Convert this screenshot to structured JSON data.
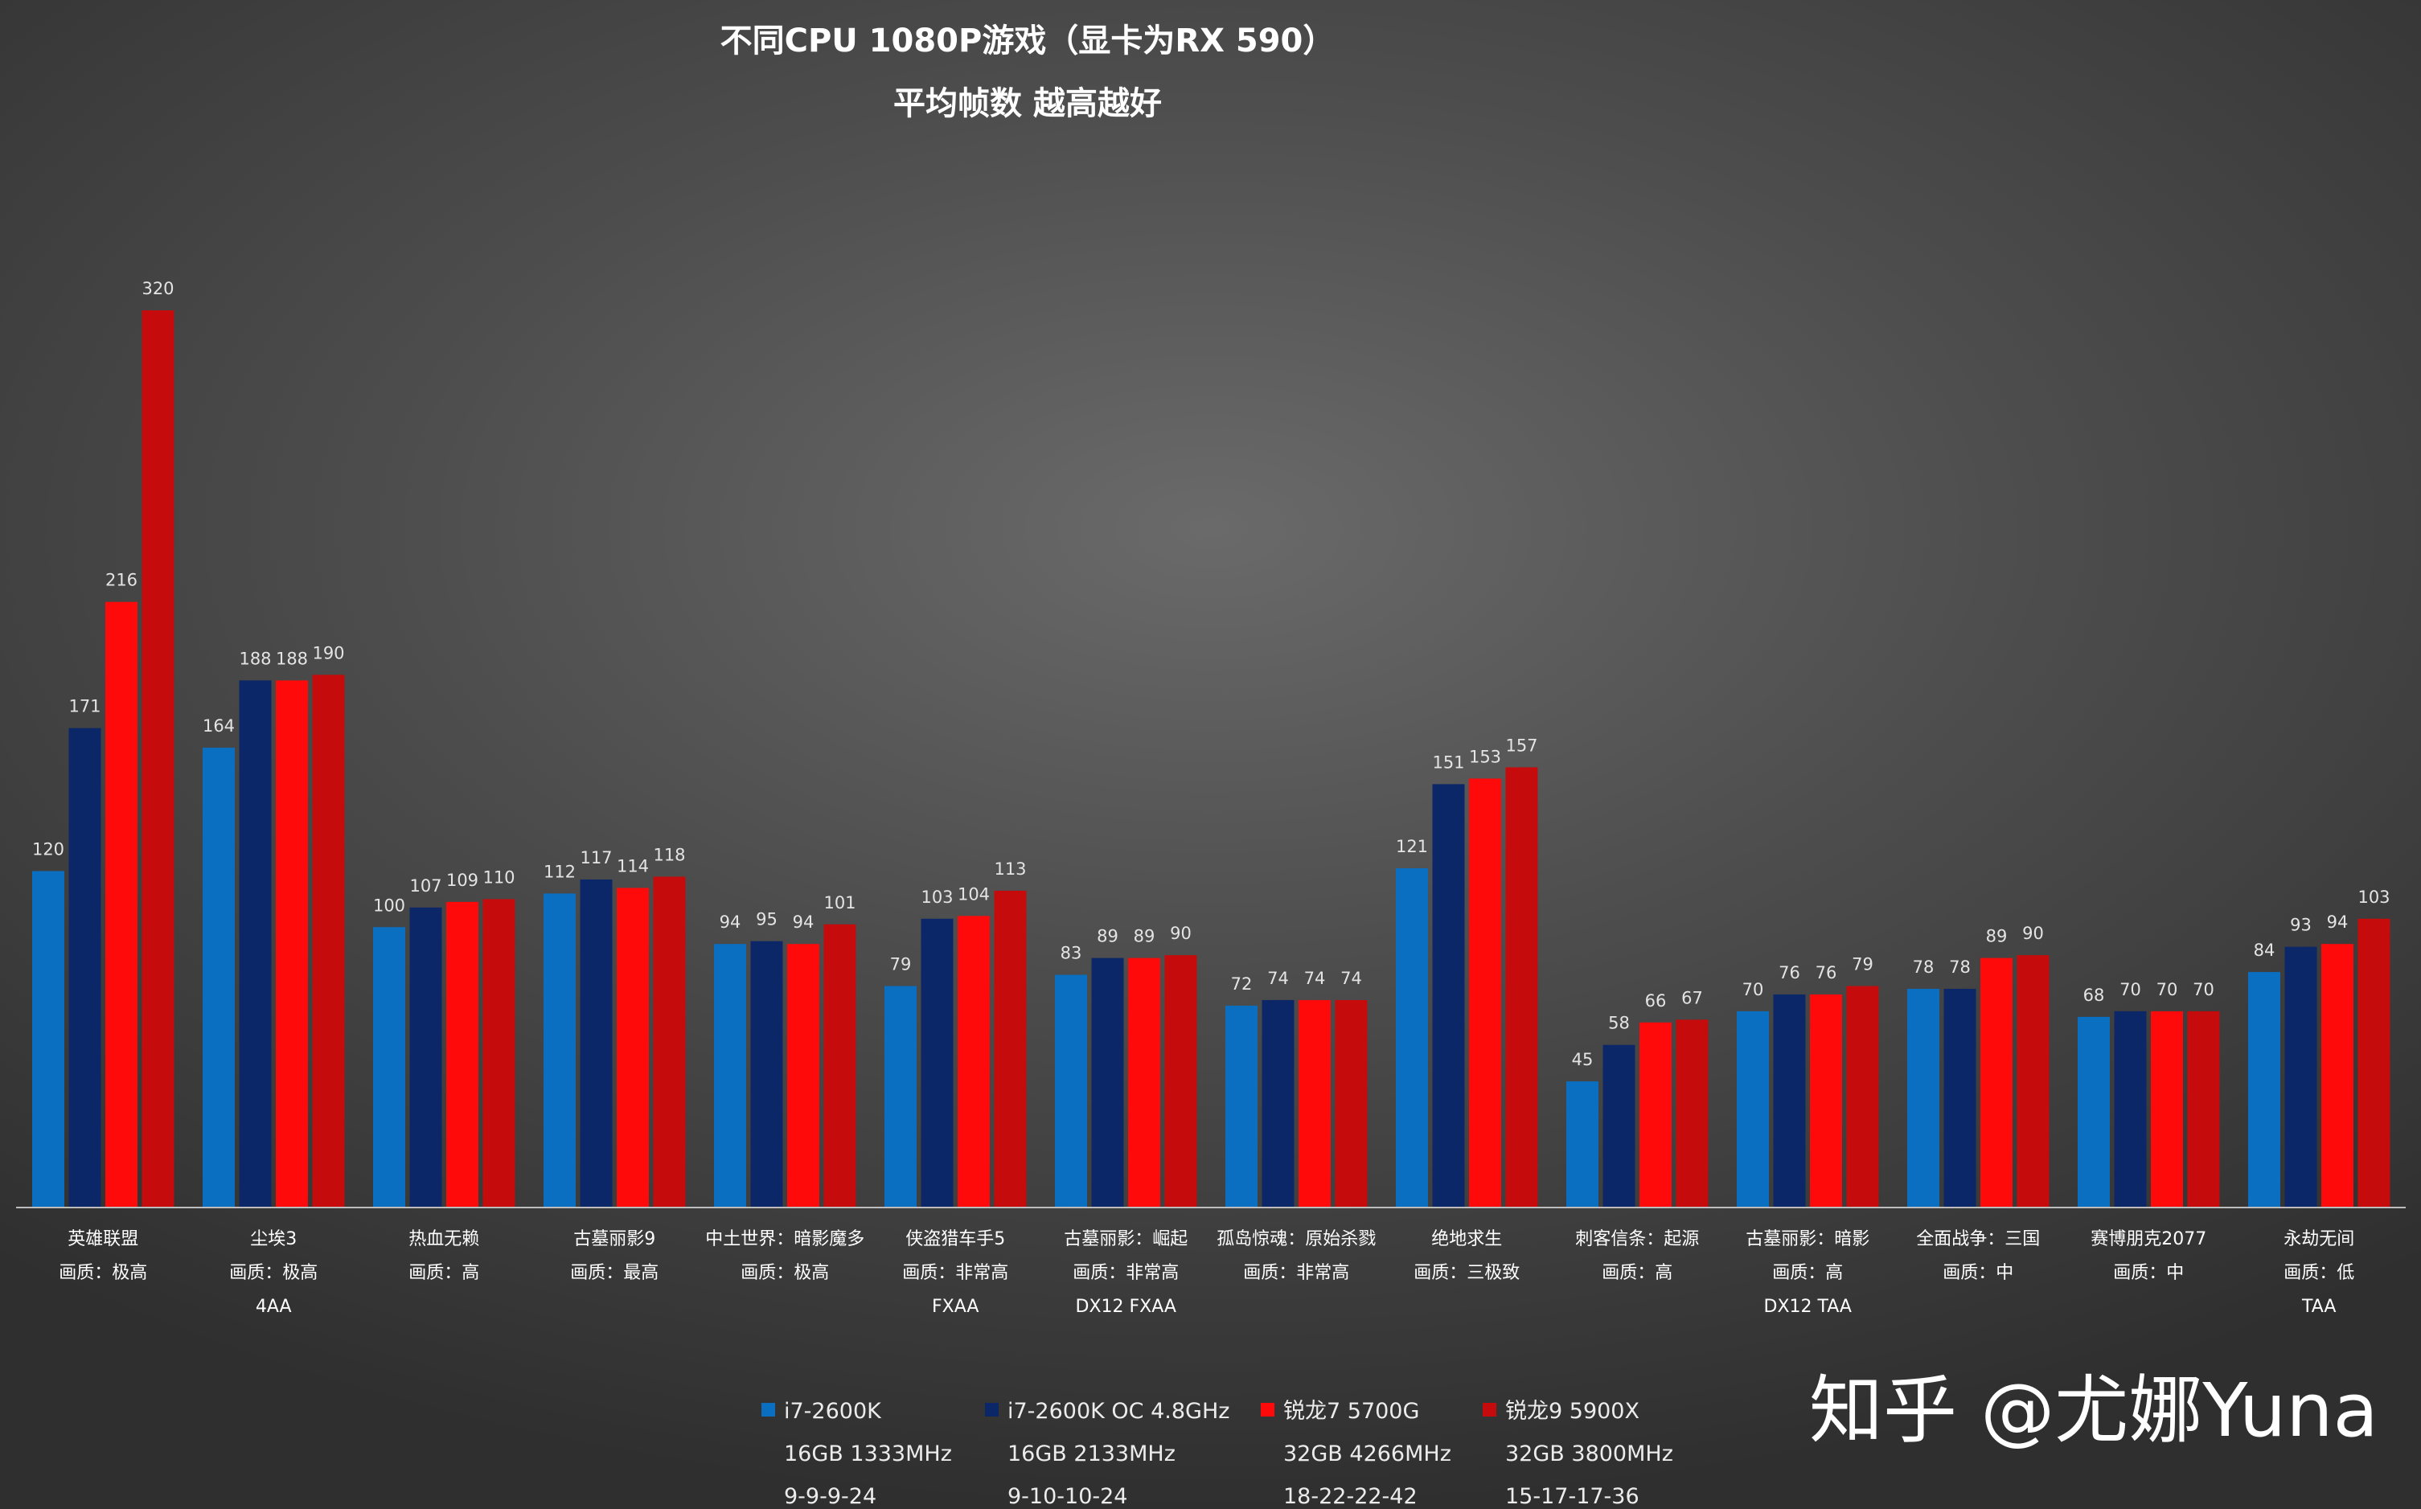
{
  "chart_data": {
    "type": "bar",
    "title": "不同CPU 1080P游戏（显卡为RX 590）",
    "subtitle": "平均帧数 越高越好",
    "ylim": [
      0,
      320
    ],
    "grid": false,
    "legend_position": "bottom",
    "categories": [
      {
        "name": "英雄联盟",
        "lines": [
          "画质：极高"
        ]
      },
      {
        "name": "尘埃3",
        "lines": [
          "画质：极高",
          "4AA"
        ]
      },
      {
        "name": "热血无赖",
        "lines": [
          "画质：高"
        ]
      },
      {
        "name": "古墓丽影9",
        "lines": [
          "画质：最高"
        ]
      },
      {
        "name": "中土世界：暗影魔多",
        "lines": [
          "画质：极高"
        ]
      },
      {
        "name": "侠盗猎车手5",
        "lines": [
          "画质：非常高",
          "FXAA"
        ]
      },
      {
        "name": "古墓丽影：崛起",
        "lines": [
          "画质：非常高",
          "DX12 FXAA"
        ]
      },
      {
        "name": "孤岛惊魂：原始杀戮",
        "lines": [
          "画质：非常高"
        ]
      },
      {
        "name": "绝地求生",
        "lines": [
          "画质：三极致"
        ]
      },
      {
        "name": "刺客信条：起源",
        "lines": [
          "画质：高"
        ]
      },
      {
        "name": "古墓丽影：暗影",
        "lines": [
          "画质：高",
          "DX12 TAA"
        ]
      },
      {
        "name": "全面战争：三国",
        "lines": [
          "画质：中"
        ]
      },
      {
        "name": "赛博朋克2077",
        "lines": [
          "画质：中"
        ]
      },
      {
        "name": "永劫无间",
        "lines": [
          "画质：低",
          "TAA"
        ]
      }
    ],
    "series": [
      {
        "name": "i7-2600K",
        "details": [
          "16GB 1333MHz",
          "9-9-9-24"
        ],
        "color": "#0a6fc0",
        "values": [
          120,
          164,
          100,
          112,
          94,
          79,
          83,
          72,
          121,
          45,
          70,
          78,
          68,
          84
        ]
      },
      {
        "name": "i7-2600K OC 4.8GHz",
        "details": [
          "16GB 2133MHz",
          "9-10-10-24"
        ],
        "color": "#0c2768",
        "values": [
          171,
          188,
          107,
          117,
          95,
          103,
          89,
          74,
          151,
          58,
          76,
          78,
          70,
          93
        ]
      },
      {
        "name": "锐龙7 5700G",
        "details": [
          "32GB 4266MHz",
          "18-22-22-42"
        ],
        "color": "#fe0a0a",
        "values": [
          216,
          188,
          109,
          114,
          94,
          104,
          89,
          74,
          153,
          66,
          76,
          89,
          70,
          94
        ]
      },
      {
        "name": "锐龙9 5900X",
        "details": [
          "32GB 3800MHz",
          "15-17-17-36"
        ],
        "color": "#c50b0b",
        "values": [
          320,
          190,
          110,
          118,
          101,
          113,
          90,
          74,
          157,
          67,
          79,
          90,
          70,
          103
        ]
      }
    ]
  },
  "watermark": "知乎 @尤娜Yuna"
}
